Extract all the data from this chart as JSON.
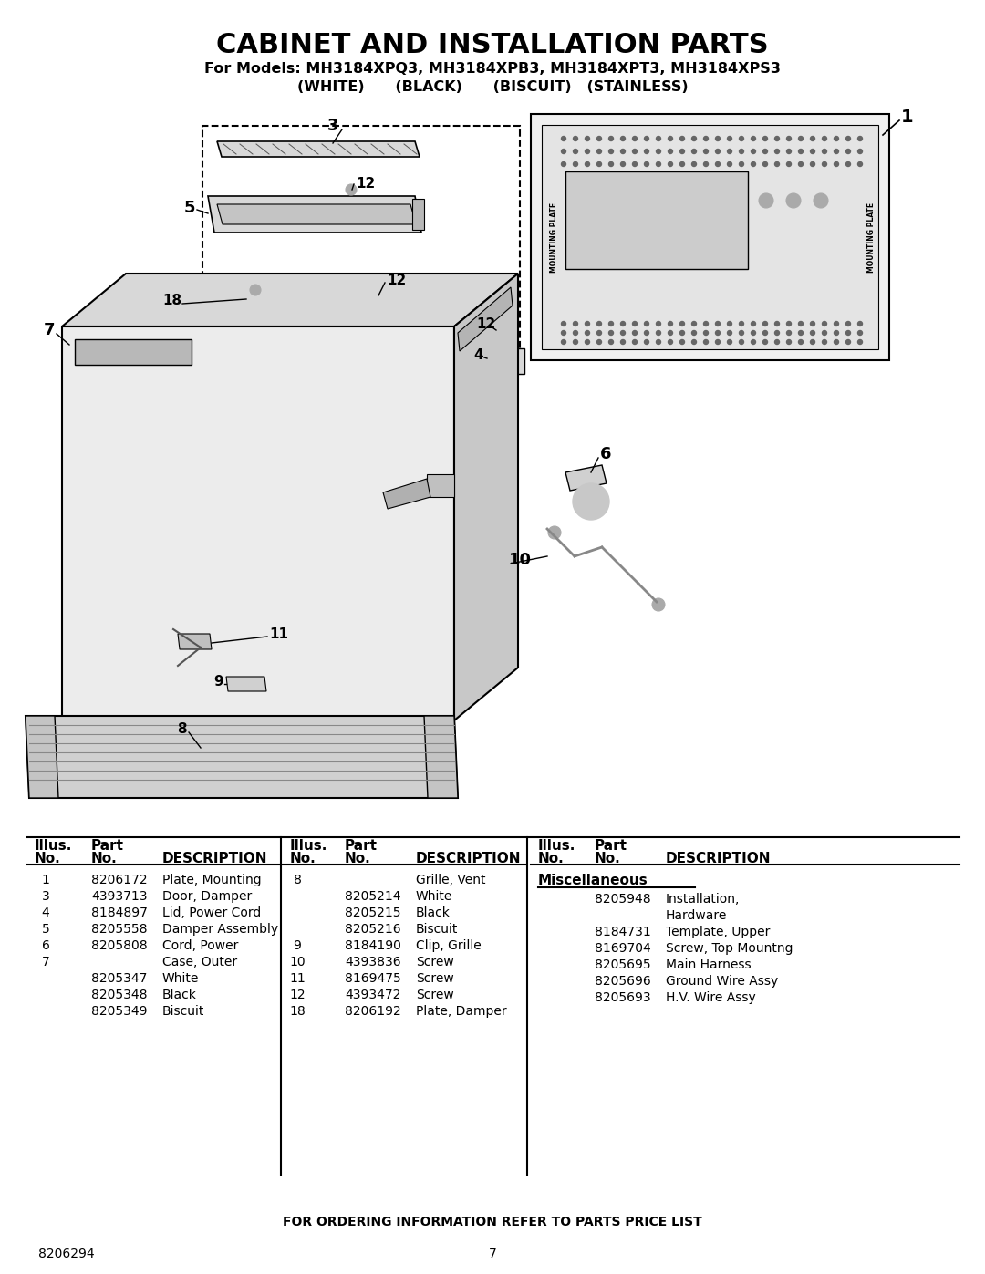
{
  "title": "CABINET AND INSTALLATION PARTS",
  "subtitle_line1": "For Models: MH3184XPQ3, MH3184XPB3, MH3184XPT3, MH3184XPS3",
  "subtitle_line2": "(WHITE)      (BLACK)      (BISCUIT)   (STAINLESS)",
  "bg_color": "#ffffff",
  "page_number": "7",
  "doc_number": "8206294",
  "footer_text": "FOR ORDERING INFORMATION REFER TO PARTS PRICE LIST",
  "col1_rows": [
    [
      "1",
      "8206172",
      "Plate, Mounting"
    ],
    [
      "3",
      "4393713",
      "Door, Damper"
    ],
    [
      "4",
      "8184897",
      "Lid, Power Cord"
    ],
    [
      "5",
      "8205558",
      "Damper Assembly"
    ],
    [
      "6",
      "8205808",
      "Cord, Power"
    ],
    [
      "7",
      "",
      "Case, Outer"
    ],
    [
      "",
      "8205347",
      "White"
    ],
    [
      "",
      "8205348",
      "Black"
    ],
    [
      "",
      "8205349",
      "Biscuit"
    ]
  ],
  "col2_rows": [
    [
      "8",
      "",
      "Grille, Vent"
    ],
    [
      "",
      "8205214",
      "White"
    ],
    [
      "",
      "8205215",
      "Black"
    ],
    [
      "",
      "8205216",
      "Biscuit"
    ],
    [
      "9",
      "8184190",
      "Clip, Grille"
    ],
    [
      "10",
      "4393836",
      "Screw"
    ],
    [
      "11",
      "8169475",
      "Screw"
    ],
    [
      "12",
      "4393472",
      "Screw"
    ],
    [
      "18",
      "8206192",
      "Plate, Damper"
    ]
  ],
  "col3_section": "Miscellaneous",
  "col3_rows": [
    [
      "",
      "8205948",
      "Installation,"
    ],
    [
      "",
      "",
      "Hardware"
    ],
    [
      "",
      "8184731",
      "Template, Upper"
    ],
    [
      "",
      "8169704",
      "Screw, Top Mountng"
    ],
    [
      "",
      "8205695",
      "Main Harness"
    ],
    [
      "",
      "8205696",
      "Ground Wire Assy"
    ],
    [
      "",
      "8205693",
      "H.V. Wire Assy"
    ]
  ]
}
